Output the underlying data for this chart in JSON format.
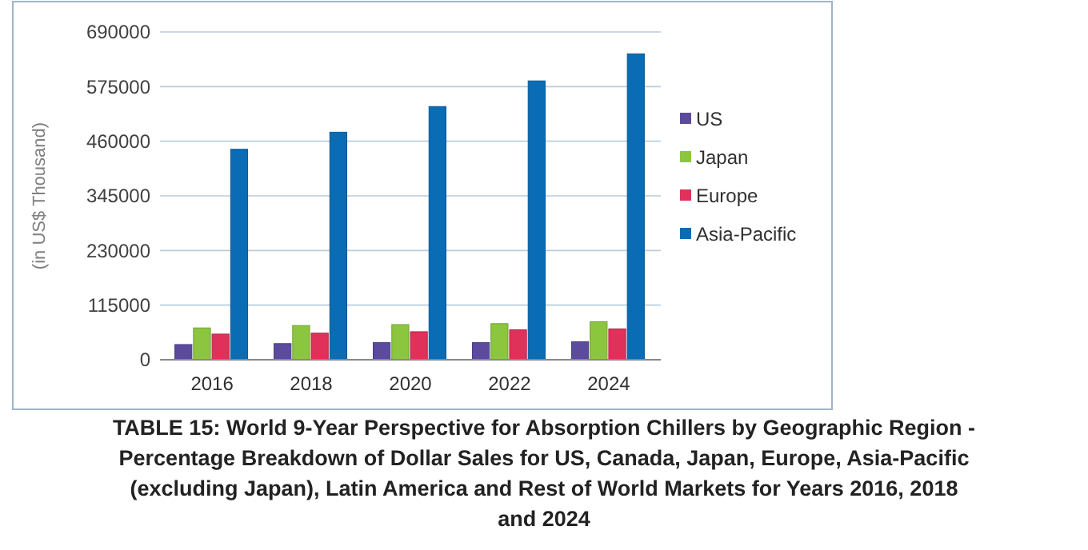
{
  "chart_data": {
    "type": "bar",
    "title": "TABLE 15: World 9-Year Perspective for Absorption Chillers by Geographic Region - Percentage Breakdown of Dollar Sales for US, Canada, Japan, Europe, Asia-Pacific (excluding Japan), Latin America and Rest of World Markets for Years 2016, 2018 and 2024",
    "ylabel": "(in US$ Thousand)",
    "categories": [
      "2016",
      "2018",
      "2020",
      "2022",
      "2024"
    ],
    "series": [
      {
        "name": "US",
        "color": "#5b4a9e",
        "values": [
          32000,
          34000,
          36000,
          36000,
          38000
        ]
      },
      {
        "name": "Japan",
        "color": "#8cc63f",
        "values": [
          67000,
          72000,
          74000,
          76000,
          80000
        ]
      },
      {
        "name": "Europe",
        "color": "#e0315a",
        "values": [
          54000,
          56000,
          59000,
          63000,
          65000
        ]
      },
      {
        "name": "Asia-Pacific",
        "color": "#0a6cb5",
        "values": [
          443000,
          479000,
          533000,
          587000,
          644000
        ]
      }
    ],
    "ylim": [
      0,
      690000
    ],
    "yticks": [
      0,
      115000,
      230000,
      345000,
      460000,
      575000,
      690000
    ],
    "grid": "y",
    "legend": "right"
  }
}
